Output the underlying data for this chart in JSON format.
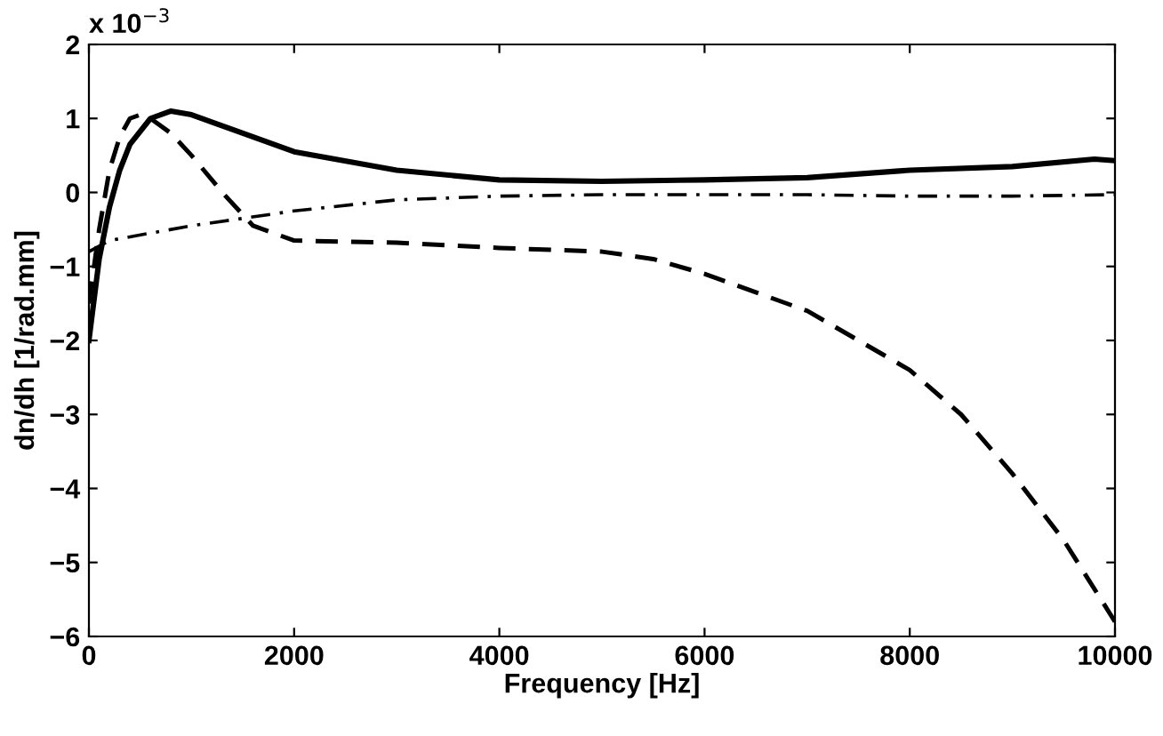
{
  "chart_data": {
    "type": "line",
    "xlabel": "Frequency [Hz]",
    "ylabel": "dn/dh [1/rad.mm]",
    "annotations": [
      "x 10$^{−3}$"
    ],
    "xlim": [
      0,
      10000
    ],
    "ylim": [
      -6,
      2
    ],
    "xticks": [
      0,
      2000,
      4000,
      6000,
      8000,
      10000
    ],
    "yticks": [
      -6,
      -5,
      -4,
      -3,
      -2,
      -1,
      0,
      1,
      2
    ],
    "grid": false,
    "legend": false,
    "series": [
      {
        "color": "#000000",
        "line_style": "solid",
        "x": [
          0,
          100,
          200,
          300,
          400,
          600,
          800,
          1000,
          1500,
          2000,
          3000,
          4000,
          5000,
          6000,
          7000,
          8000,
          9000,
          9800,
          10000
        ],
        "values": [
          -2.0,
          -0.9,
          -0.2,
          0.3,
          0.65,
          1.0,
          1.1,
          1.05,
          0.8,
          0.55,
          0.3,
          0.17,
          0.15,
          0.17,
          0.2,
          0.3,
          0.35,
          0.45,
          0.43
        ]
      },
      {
        "color": "#000000",
        "line_style": "dashed",
        "x": [
          0,
          100,
          200,
          300,
          400,
          500,
          600,
          800,
          1000,
          1300,
          1600,
          2000,
          3000,
          4000,
          5000,
          5500,
          6000,
          7000,
          8000,
          8500,
          9000,
          9500,
          10000
        ],
        "values": [
          -1.5,
          -0.5,
          0.3,
          0.75,
          1.0,
          1.05,
          1.0,
          0.8,
          0.5,
          0.0,
          -0.45,
          -0.65,
          -0.68,
          -0.75,
          -0.8,
          -0.9,
          -1.1,
          -1.6,
          -2.4,
          -3.0,
          -3.8,
          -4.7,
          -5.8
        ]
      },
      {
        "color": "#000000",
        "line_style": "dashdot",
        "x": [
          0,
          200,
          1000,
          2000,
          3000,
          4000,
          5000,
          6000,
          7000,
          8000,
          9000,
          10000
        ],
        "values": [
          -0.8,
          -0.65,
          -0.45,
          -0.25,
          -0.1,
          -0.05,
          -0.03,
          -0.03,
          -0.03,
          -0.05,
          -0.05,
          -0.03
        ]
      }
    ]
  }
}
